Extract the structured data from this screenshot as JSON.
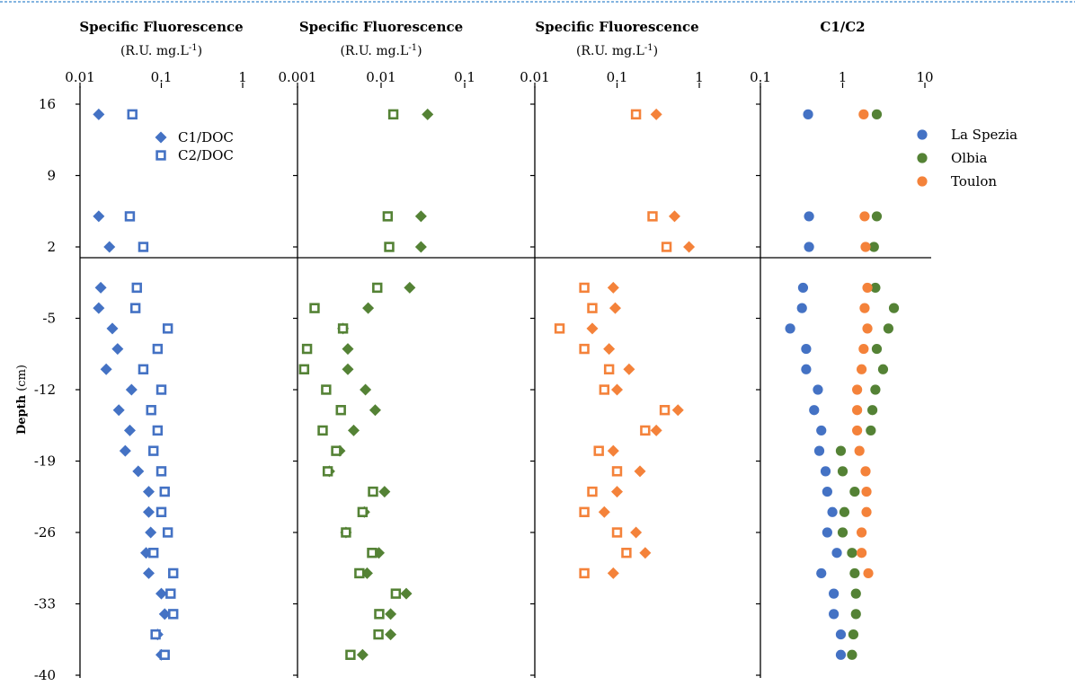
{
  "colors": {
    "la_spezia": "#4472C4",
    "olbia": "#548235",
    "toulon": "#F4823A",
    "axis": "#000000",
    "top_border": "#5B9BD5"
  },
  "shared_y_axis": {
    "label_main": "Depth",
    "label_unit": " (cm)",
    "ticks": [
      "16",
      "9",
      "2",
      "-5",
      "-12",
      "-19",
      "-26",
      "-33",
      "-40"
    ],
    "tick_values": [
      16,
      9,
      2,
      -5,
      -12,
      -19,
      -26,
      -33,
      -40
    ]
  },
  "legend_left": {
    "items": [
      {
        "label": "C1/DOC",
        "marker": "diamond-filled"
      },
      {
        "label": "C2/DOC",
        "marker": "square-open"
      }
    ]
  },
  "legend_right": {
    "items": [
      {
        "label": "La Spezia",
        "color_key": "la_spezia"
      },
      {
        "label": "Olbia",
        "color_key": "olbia"
      },
      {
        "label": "Toulon",
        "color_key": "toulon"
      }
    ]
  },
  "chart_data": [
    {
      "type": "scatter",
      "title": "Specific Fluorescence",
      "subtitle_pre": "(R.U. mg.L",
      "subtitle_sup": "-1",
      "subtitle_post": ")",
      "x_scale": "log",
      "xlim": [
        0.01,
        1
      ],
      "x_ticks": [
        0.01,
        0.1,
        1
      ],
      "x_tick_labels": [
        "0.01",
        "0.1",
        "1"
      ],
      "series": [
        {
          "name": "C1/DOC",
          "site": "La Spezia",
          "marker": "diamond-filled",
          "color_key": "la_spezia",
          "points": [
            [
              0.017,
              15
            ],
            [
              0.017,
              5
            ],
            [
              0.023,
              2
            ],
            [
              0.018,
              -2
            ],
            [
              0.017,
              -4
            ],
            [
              0.025,
              -6
            ],
            [
              0.029,
              -8
            ],
            [
              0.021,
              -10
            ],
            [
              0.043,
              -12
            ],
            [
              0.03,
              -14
            ],
            [
              0.041,
              -16
            ],
            [
              0.036,
              -18
            ],
            [
              0.052,
              -20
            ],
            [
              0.07,
              -22
            ],
            [
              0.07,
              -24
            ],
            [
              0.074,
              -26
            ],
            [
              0.065,
              -28
            ],
            [
              0.07,
              -30
            ],
            [
              0.1,
              -32
            ],
            [
              0.11,
              -34
            ],
            [
              0.09,
              -36
            ],
            [
              0.1,
              -38
            ]
          ]
        },
        {
          "name": "C2/DOC",
          "site": "La Spezia",
          "marker": "square-open",
          "color_key": "la_spezia",
          "points": [
            [
              0.044,
              15
            ],
            [
              0.041,
              5
            ],
            [
              0.06,
              2
            ],
            [
              0.05,
              -2
            ],
            [
              0.048,
              -4
            ],
            [
              0.12,
              -6
            ],
            [
              0.09,
              -8
            ],
            [
              0.06,
              -10
            ],
            [
              0.1,
              -12
            ],
            [
              0.075,
              -14
            ],
            [
              0.09,
              -16
            ],
            [
              0.08,
              -18
            ],
            [
              0.1,
              -20
            ],
            [
              0.11,
              -22
            ],
            [
              0.1,
              -24
            ],
            [
              0.12,
              -26
            ],
            [
              0.08,
              -28
            ],
            [
              0.14,
              -30
            ],
            [
              0.13,
              -32
            ],
            [
              0.14,
              -34
            ],
            [
              0.085,
              -36
            ],
            [
              0.11,
              -38
            ]
          ]
        }
      ]
    },
    {
      "type": "scatter",
      "title": "Specific Fluorescence",
      "subtitle_pre": "(R.U. mg.L",
      "subtitle_sup": "-1",
      "subtitle_post": ")",
      "x_scale": "log",
      "xlim": [
        0.001,
        0.1
      ],
      "x_ticks": [
        0.001,
        0.01,
        0.1
      ],
      "x_tick_labels": [
        "0.001",
        "0.01",
        "0.1"
      ],
      "series": [
        {
          "name": "C1/DOC",
          "site": "Olbia",
          "marker": "diamond-filled",
          "color_key": "olbia",
          "points": [
            [
              0.036,
              15
            ],
            [
              0.03,
              5
            ],
            [
              0.03,
              2
            ],
            [
              0.022,
              -2
            ],
            [
              0.007,
              -4
            ],
            [
              0.0035,
              -6
            ],
            [
              0.004,
              -8
            ],
            [
              0.004,
              -10
            ],
            [
              0.0065,
              -12
            ],
            [
              0.0085,
              -14
            ],
            [
              0.0047,
              -16
            ],
            [
              0.0032,
              -18
            ],
            [
              0.0024,
              -20
            ],
            [
              0.011,
              -22
            ],
            [
              0.0063,
              -24
            ],
            [
              0.0038,
              -26
            ],
            [
              0.0094,
              -28
            ],
            [
              0.0068,
              -30
            ],
            [
              0.02,
              -32
            ],
            [
              0.013,
              -34
            ],
            [
              0.013,
              -36
            ],
            [
              0.006,
              -38
            ]
          ]
        },
        {
          "name": "C2/DOC",
          "site": "Olbia",
          "marker": "square-open",
          "color_key": "olbia",
          "points": [
            [
              0.014,
              15
            ],
            [
              0.012,
              5
            ],
            [
              0.0125,
              2
            ],
            [
              0.009,
              -2
            ],
            [
              0.0016,
              -4
            ],
            [
              0.0035,
              -6
            ],
            [
              0.0013,
              -8
            ],
            [
              0.0012,
              -10
            ],
            [
              0.0022,
              -12
            ],
            [
              0.0033,
              -14
            ],
            [
              0.002,
              -16
            ],
            [
              0.0029,
              -18
            ],
            [
              0.0023,
              -20
            ],
            [
              0.008,
              -22
            ],
            [
              0.006,
              -24
            ],
            [
              0.0038,
              -26
            ],
            [
              0.0078,
              -28
            ],
            [
              0.0055,
              -30
            ],
            [
              0.015,
              -32
            ],
            [
              0.0095,
              -34
            ],
            [
              0.0093,
              -36
            ],
            [
              0.0043,
              -38
            ]
          ]
        }
      ]
    },
    {
      "type": "scatter",
      "title": "Specific Fluorescence",
      "subtitle_pre": "(R.U. mg.L",
      "subtitle_sup": "-1",
      "subtitle_post": ")",
      "x_scale": "log",
      "xlim": [
        0.01,
        1
      ],
      "x_ticks": [
        0.01,
        0.1,
        1
      ],
      "x_tick_labels": [
        "0.01",
        "0.1",
        "1"
      ],
      "series": [
        {
          "name": "C1/DOC",
          "site": "Toulon",
          "marker": "diamond-filled",
          "color_key": "toulon",
          "points": [
            [
              0.3,
              15
            ],
            [
              0.5,
              5
            ],
            [
              0.75,
              2
            ],
            [
              0.09,
              -2
            ],
            [
              0.095,
              -4
            ],
            [
              0.05,
              -6
            ],
            [
              0.08,
              -8
            ],
            [
              0.14,
              -10
            ],
            [
              0.1,
              -12
            ],
            [
              0.55,
              -14
            ],
            [
              0.3,
              -16
            ],
            [
              0.09,
              -18
            ],
            [
              0.19,
              -20
            ],
            [
              0.1,
              -22
            ],
            [
              0.07,
              -24
            ],
            [
              0.17,
              -26
            ],
            [
              0.22,
              -28
            ],
            [
              0.09,
              -30
            ]
          ]
        },
        {
          "name": "C2/DOC",
          "site": "Toulon",
          "marker": "square-open",
          "color_key": "toulon",
          "points": [
            [
              0.17,
              15
            ],
            [
              0.27,
              5
            ],
            [
              0.4,
              2
            ],
            [
              0.04,
              -2
            ],
            [
              0.05,
              -4
            ],
            [
              0.02,
              -6
            ],
            [
              0.04,
              -8
            ],
            [
              0.08,
              -10
            ],
            [
              0.07,
              -12
            ],
            [
              0.38,
              -14
            ],
            [
              0.22,
              -16
            ],
            [
              0.06,
              -18
            ],
            [
              0.1,
              -20
            ],
            [
              0.05,
              -22
            ],
            [
              0.04,
              -24
            ],
            [
              0.1,
              -26
            ],
            [
              0.13,
              -28
            ],
            [
              0.04,
              -30
            ]
          ]
        }
      ]
    },
    {
      "type": "scatter",
      "title": "C1/C2",
      "x_scale": "log",
      "xlim": [
        0.1,
        10
      ],
      "x_ticks": [
        0.1,
        1,
        10
      ],
      "x_tick_labels": [
        "0.1",
        "1",
        "10"
      ],
      "series": [
        {
          "name": "La Spezia",
          "marker": "circle",
          "color_key": "la_spezia",
          "points": [
            [
              0.38,
              15
            ],
            [
              0.39,
              5
            ],
            [
              0.39,
              2
            ],
            [
              0.33,
              -2
            ],
            [
              0.32,
              -4
            ],
            [
              0.23,
              -6
            ],
            [
              0.36,
              -8
            ],
            [
              0.36,
              -10
            ],
            [
              0.5,
              -12
            ],
            [
              0.45,
              -14
            ],
            [
              0.55,
              -16
            ],
            [
              0.52,
              -18
            ],
            [
              0.62,
              -20
            ],
            [
              0.65,
              -22
            ],
            [
              0.75,
              -24
            ],
            [
              0.65,
              -26
            ],
            [
              0.85,
              -28
            ],
            [
              0.55,
              -30
            ],
            [
              0.78,
              -32
            ],
            [
              0.78,
              -34
            ],
            [
              0.95,
              -36
            ],
            [
              0.95,
              -38
            ]
          ]
        },
        {
          "name": "Olbia",
          "marker": "circle",
          "color_key": "olbia",
          "points": [
            [
              2.6,
              15
            ],
            [
              2.6,
              5
            ],
            [
              2.4,
              2
            ],
            [
              2.5,
              -2
            ],
            [
              4.2,
              -4
            ],
            [
              3.6,
              -6
            ],
            [
              2.6,
              -8
            ],
            [
              3.1,
              -10
            ],
            [
              2.5,
              -12
            ],
            [
              2.3,
              -14
            ],
            [
              2.2,
              -16
            ],
            [
              0.95,
              -18
            ],
            [
              1.0,
              -20
            ],
            [
              1.4,
              -22
            ],
            [
              1.05,
              -24
            ],
            [
              1.0,
              -26
            ],
            [
              1.3,
              -28
            ],
            [
              1.4,
              -30
            ],
            [
              1.45,
              -32
            ],
            [
              1.45,
              -34
            ],
            [
              1.35,
              -36
            ],
            [
              1.3,
              -38
            ]
          ]
        },
        {
          "name": "Toulon",
          "marker": "circle",
          "color_key": "toulon",
          "points": [
            [
              1.8,
              15
            ],
            [
              1.85,
              5
            ],
            [
              1.9,
              2
            ],
            [
              2.0,
              -2
            ],
            [
              1.85,
              -4
            ],
            [
              2.0,
              -6
            ],
            [
              1.8,
              -8
            ],
            [
              1.7,
              -10
            ],
            [
              1.5,
              -12
            ],
            [
              1.5,
              -14
            ],
            [
              1.5,
              -16
            ],
            [
              1.6,
              -18
            ],
            [
              1.9,
              -20
            ],
            [
              1.95,
              -22
            ],
            [
              1.95,
              -24
            ],
            [
              1.7,
              -26
            ],
            [
              1.7,
              -28
            ],
            [
              2.05,
              -30
            ]
          ]
        }
      ]
    }
  ]
}
